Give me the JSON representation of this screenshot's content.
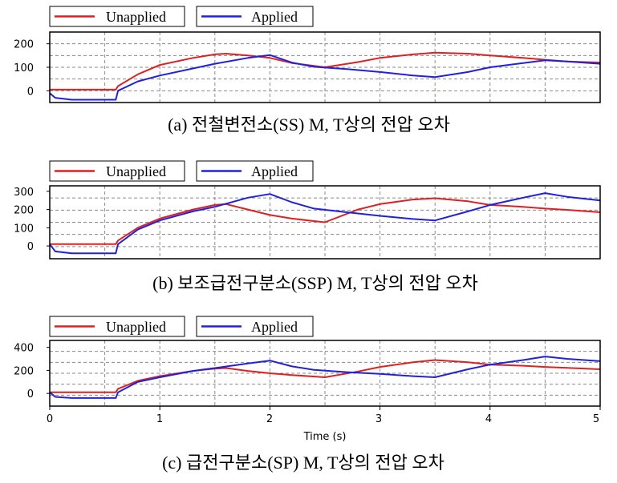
{
  "legend": {
    "unapplied_label": "Unapplied",
    "applied_label": "Applied",
    "unapplied_color": "#e02020",
    "applied_color": "#2020e0"
  },
  "xlabel": "Time (s)",
  "x_ticks": [
    "0",
    "1",
    "2",
    "3",
    "4",
    "5"
  ],
  "chart_data": [
    {
      "type": "line",
      "caption": "(a)  전철변전소(SS) M, T상의 전압 오차",
      "xlim": [
        0,
        5
      ],
      "ylim": [
        -50,
        250
      ],
      "y_ticks": [
        0,
        100,
        200
      ],
      "grid": true,
      "legend_placement": "top-left",
      "series": [
        {
          "name": "Unapplied",
          "color": "#e02020",
          "x": [
            0,
            0.6,
            0.62,
            0.8,
            1.0,
            1.3,
            1.5,
            1.6,
            1.8,
            2.0,
            2.2,
            2.5,
            2.8,
            3.0,
            3.3,
            3.5,
            3.8,
            4.0,
            4.3,
            4.5,
            4.7,
            5.0
          ],
          "y": [
            5,
            5,
            20,
            70,
            110,
            140,
            155,
            158,
            150,
            140,
            118,
            100,
            122,
            140,
            155,
            162,
            158,
            150,
            140,
            132,
            125,
            120
          ]
        },
        {
          "name": "Applied",
          "color": "#2020e0",
          "x": [
            0,
            0.05,
            0.2,
            0.4,
            0.6,
            0.62,
            0.8,
            1.0,
            1.3,
            1.5,
            1.8,
            2.0,
            2.2,
            2.4,
            2.7,
            3.0,
            3.3,
            3.5,
            3.8,
            4.0,
            4.3,
            4.5,
            4.7,
            5.0
          ],
          "y": [
            -10,
            -30,
            -38,
            -38,
            -38,
            0,
            40,
            65,
            95,
            115,
            140,
            152,
            120,
            102,
            92,
            80,
            65,
            58,
            80,
            100,
            118,
            130,
            125,
            115
          ]
        }
      ]
    },
    {
      "type": "line",
      "caption": "(b)  보조급전구분소(SSP) M, T상의 전압 오차",
      "xlim": [
        0,
        5
      ],
      "ylim": [
        -70,
        330
      ],
      "y_ticks": [
        0,
        100,
        200,
        300
      ],
      "grid": true,
      "legend_placement": "top-left",
      "series": [
        {
          "name": "Unapplied",
          "color": "#e02020",
          "x": [
            0,
            0.6,
            0.62,
            0.8,
            1.0,
            1.3,
            1.5,
            1.6,
            1.8,
            2.0,
            2.2,
            2.5,
            2.8,
            3.0,
            3.3,
            3.5,
            3.8,
            4.0,
            4.3,
            4.5,
            4.7,
            5.0
          ],
          "y": [
            10,
            10,
            30,
            100,
            150,
            200,
            225,
            230,
            200,
            170,
            150,
            130,
            200,
            230,
            255,
            262,
            245,
            225,
            215,
            205,
            198,
            185
          ]
        },
        {
          "name": "Applied",
          "color": "#2020e0",
          "x": [
            0,
            0.05,
            0.2,
            0.4,
            0.6,
            0.62,
            0.8,
            1.0,
            1.3,
            1.5,
            1.8,
            2.0,
            2.2,
            2.4,
            2.7,
            3.0,
            3.3,
            3.5,
            3.8,
            4.0,
            4.3,
            4.5,
            4.7,
            5.0
          ],
          "y": [
            10,
            -30,
            -40,
            -40,
            -40,
            10,
            90,
            140,
            190,
            215,
            265,
            285,
            240,
            205,
            185,
            165,
            148,
            140,
            190,
            225,
            265,
            290,
            270,
            250
          ]
        }
      ]
    },
    {
      "type": "line",
      "caption": "(c)  급전구분소(SP) M, T상의 전압 오차",
      "xlim": [
        0,
        5
      ],
      "ylim": [
        -110,
        460
      ],
      "y_ticks": [
        0,
        200,
        400
      ],
      "grid": true,
      "legend_placement": "top-left",
      "series": [
        {
          "name": "Unapplied",
          "color": "#e02020",
          "x": [
            0,
            0.6,
            0.62,
            0.8,
            1.0,
            1.3,
            1.5,
            1.6,
            1.8,
            2.0,
            2.2,
            2.5,
            2.8,
            3.0,
            3.3,
            3.5,
            3.8,
            4.0,
            4.3,
            4.5,
            4.7,
            5.0
          ],
          "y": [
            10,
            10,
            40,
            110,
            150,
            195,
            215,
            220,
            195,
            175,
            160,
            140,
            190,
            230,
            270,
            290,
            270,
            250,
            240,
            230,
            222,
            210
          ]
        },
        {
          "name": "Applied",
          "color": "#2020e0",
          "x": [
            0,
            0.05,
            0.2,
            0.4,
            0.6,
            0.62,
            0.8,
            1.0,
            1.3,
            1.5,
            1.8,
            2.0,
            2.2,
            2.4,
            2.7,
            3.0,
            3.3,
            3.5,
            3.8,
            4.0,
            4.3,
            4.5,
            4.7,
            5.0
          ],
          "y": [
            10,
            -30,
            -40,
            -40,
            -40,
            10,
            100,
            140,
            195,
            220,
            260,
            285,
            235,
            205,
            185,
            170,
            150,
            140,
            210,
            250,
            290,
            320,
            300,
            280
          ]
        }
      ]
    }
  ]
}
